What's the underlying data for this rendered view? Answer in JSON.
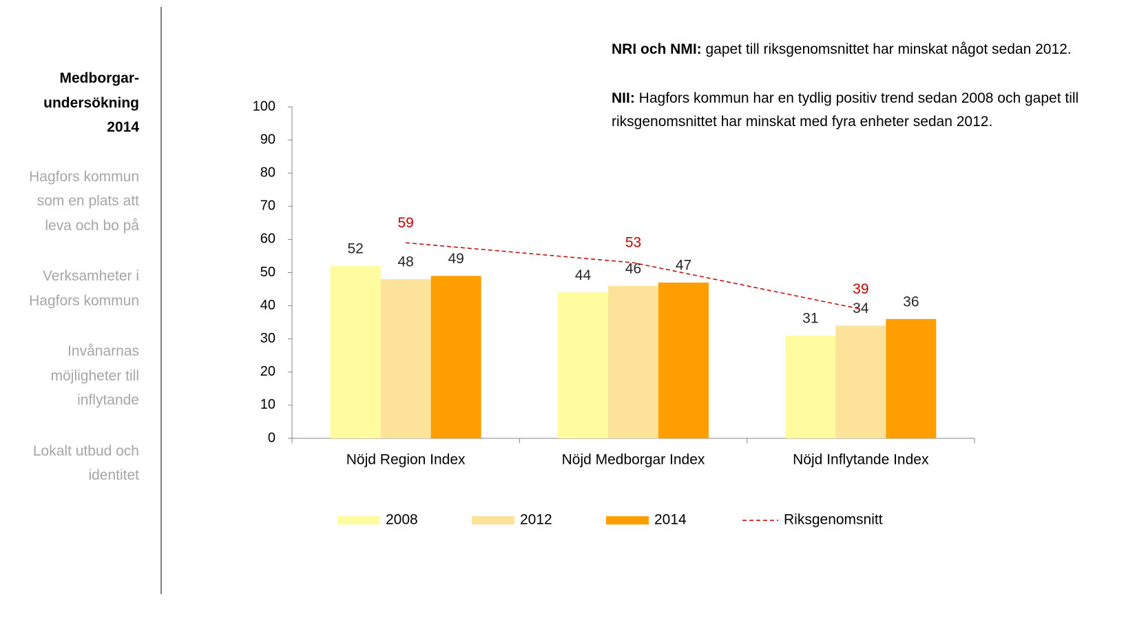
{
  "sidebar": {
    "title": "Medborgar-undersökning 2014",
    "items": [
      "Hagfors kommun som en plats att leva och bo på",
      "Verksamheter i Hagfors kommun",
      "Invånarnas möjligheter till inflytande",
      "Lokalt utbud och identitet"
    ]
  },
  "annotations": [
    {
      "bold": "NRI och NMI:",
      "text": "gapet till riksgenomsnittet har minskat något sedan 2012."
    },
    {
      "bold": "NII:",
      "text": "Hagfors kommun har en tydlig positiv trend sedan 2008 och gapet till riksgenomsnittet har minskat med fyra enheter sedan 2012."
    }
  ],
  "chart_data": {
    "type": "bar",
    "categories": [
      "Nöjd Region Index",
      "Nöjd Medborgar Index",
      "Nöjd Inflytande Index"
    ],
    "series": [
      {
        "name": "2008",
        "color": "#fffb9f",
        "values": [
          52,
          44,
          31
        ]
      },
      {
        "name": "2012",
        "color": "#fde29a",
        "values": [
          48,
          46,
          34
        ]
      },
      {
        "name": "2014",
        "color": "#ff9e00",
        "values": [
          49,
          47,
          36
        ]
      },
      {
        "name": "Riksgenomsnitt",
        "type": "line",
        "color": "#c00000",
        "values": [
          59,
          53,
          39
        ]
      }
    ],
    "ylim": [
      0,
      100
    ],
    "yticks": [
      0,
      10,
      20,
      30,
      40,
      50,
      60,
      70,
      80,
      90,
      100
    ],
    "legend": "bottom"
  }
}
